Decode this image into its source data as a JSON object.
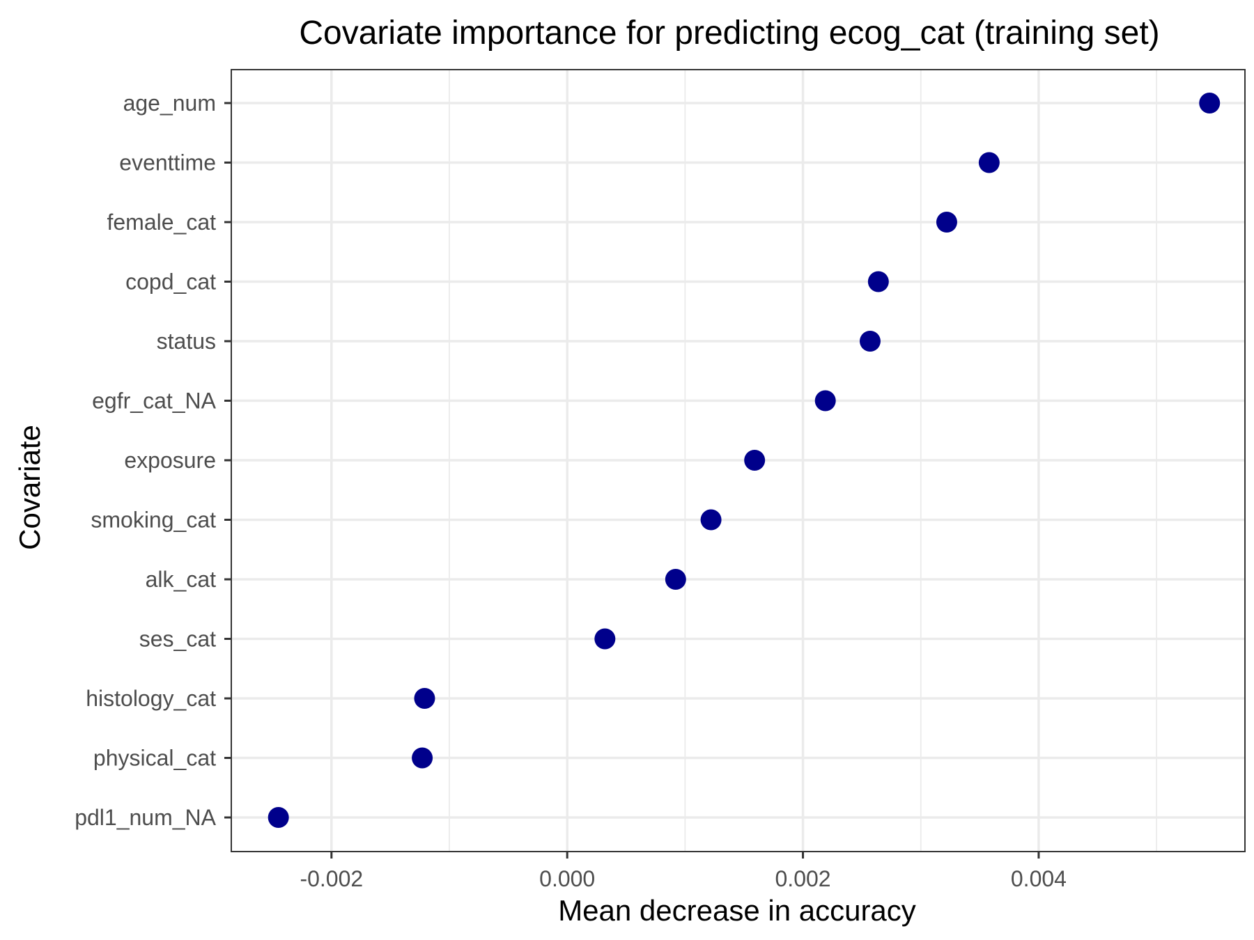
{
  "chart_data": {
    "type": "scatter",
    "title": "Covariate importance for predicting ecog_cat (training set)",
    "xlabel": "Mean decrease in accuracy",
    "ylabel": "Covariate",
    "xlim": [
      -0.00285,
      0.00575
    ],
    "xticks": [
      -0.002,
      0.0,
      0.002,
      0.004
    ],
    "xtick_labels": [
      "-0.002",
      "0.000",
      "0.002",
      "0.004"
    ],
    "grid": true,
    "point_color": "#00008B",
    "categories": [
      "age_num",
      "eventtime",
      "female_cat",
      "copd_cat",
      "status",
      "egfr_cat_NA",
      "exposure",
      "smoking_cat",
      "alk_cat",
      "ses_cat",
      "histology_cat",
      "physical_cat",
      "pdl1_num_NA"
    ],
    "values": [
      0.00545,
      0.00358,
      0.00322,
      0.00264,
      0.00257,
      0.00219,
      0.00159,
      0.00122,
      0.00092,
      0.00032,
      -0.00121,
      -0.00123,
      -0.00245
    ]
  }
}
